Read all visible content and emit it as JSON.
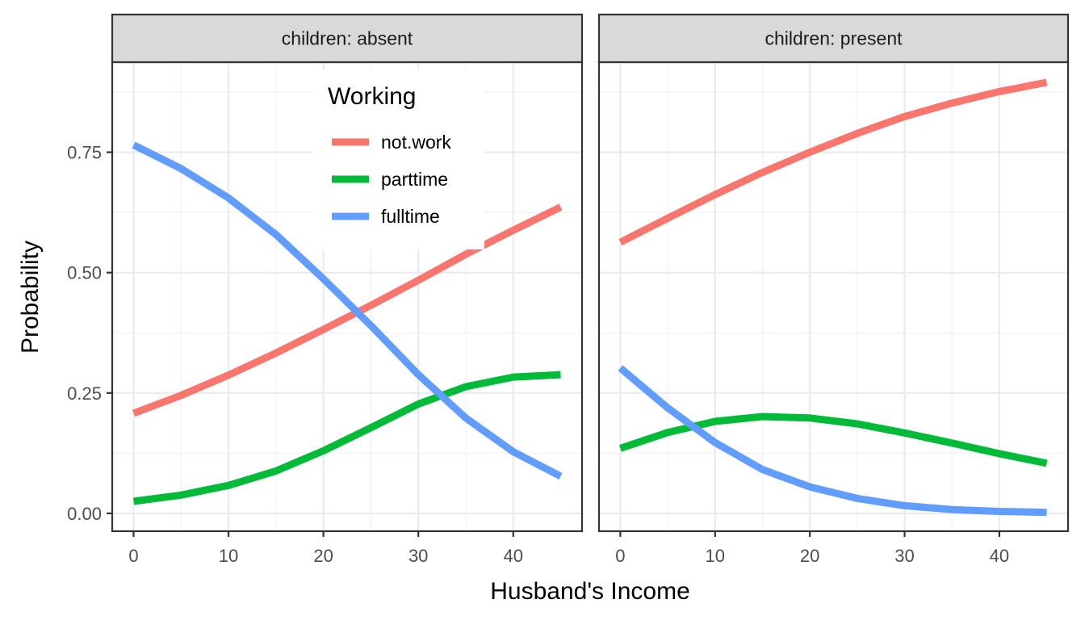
{
  "chart_data": {
    "type": "line",
    "xlabel": "Husband's Income",
    "ylabel": "Probability",
    "xlim": [
      -2.25,
      47.25
    ],
    "ylim": [
      -0.037,
      0.937
    ],
    "x_ticks": [
      0,
      10,
      20,
      30,
      40
    ],
    "y_ticks": [
      0,
      0.25,
      0.5,
      0.75
    ],
    "x_tick_labels": [
      "0",
      "10",
      "20",
      "30",
      "40"
    ],
    "y_tick_labels": [
      "0.00",
      "0.25",
      "0.50",
      "0.75"
    ],
    "grid": true,
    "legend": {
      "title": "Working",
      "placement": "inside top of left panel",
      "entries": [
        {
          "label": "not.work",
          "color": "#F8766D"
        },
        {
          "label": "parttime",
          "color": "#00BA38"
        },
        {
          "label": "fulltime",
          "color": "#619CFF"
        }
      ]
    },
    "x": [
      0,
      5,
      10,
      15,
      20,
      25,
      30,
      35,
      40,
      45
    ],
    "panels": [
      {
        "strip": "children: absent",
        "series": [
          {
            "name": "not.work",
            "color": "#F8766D",
            "values": [
              0.208,
              0.245,
              0.287,
              0.333,
              0.382,
              0.432,
              0.484,
              0.538,
              0.588,
              0.636
            ]
          },
          {
            "name": "parttime",
            "color": "#00BA38",
            "values": [
              0.025,
              0.038,
              0.058,
              0.088,
              0.13,
              0.178,
              0.227,
              0.263,
              0.283,
              0.288
            ]
          },
          {
            "name": "fulltime",
            "color": "#619CFF",
            "values": [
              0.765,
              0.716,
              0.655,
              0.579,
              0.487,
              0.39,
              0.288,
              0.198,
              0.128,
              0.077
            ]
          }
        ]
      },
      {
        "strip": "children: present",
        "series": [
          {
            "name": "not.work",
            "color": "#F8766D",
            "values": [
              0.563,
              0.613,
              0.662,
              0.708,
              0.75,
              0.789,
              0.824,
              0.852,
              0.876,
              0.895
            ]
          },
          {
            "name": "parttime",
            "color": "#00BA38",
            "values": [
              0.135,
              0.168,
              0.191,
              0.201,
              0.198,
              0.186,
              0.167,
              0.146,
              0.124,
              0.104
            ]
          },
          {
            "name": "fulltime",
            "color": "#619CFF",
            "values": [
              0.302,
              0.219,
              0.147,
              0.091,
              0.055,
              0.031,
              0.016,
              0.008,
              0.004,
              0.002
            ]
          }
        ]
      }
    ]
  }
}
